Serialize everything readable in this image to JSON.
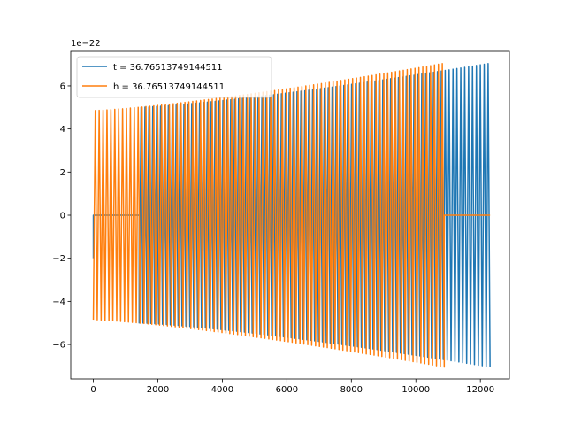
{
  "chart_data": {
    "type": "line",
    "title": "",
    "xlabel": "",
    "ylabel": "",
    "x_offset_label": "",
    "y_offset_label": "1e−22",
    "xlim": [
      -700,
      12900
    ],
    "ylim": [
      -7.6,
      7.6
    ],
    "grid": false,
    "legend_position": "top-left",
    "x_ticks": [
      0,
      2000,
      4000,
      6000,
      8000,
      10000,
      12000
    ],
    "x_tick_labels": [
      "0",
      "2000",
      "4000",
      "6000",
      "8000",
      "10000",
      "12000"
    ],
    "y_ticks": [
      -6,
      -4,
      -2,
      0,
      2,
      4,
      6
    ],
    "y_tick_labels": [
      "−6",
      "−4",
      "−2",
      "0",
      "2",
      "4",
      "6"
    ],
    "series": [
      {
        "name": "t = 36.76513749144511",
        "color": "#1f77b4",
        "flat_segments": [
          [
            0,
            1420
          ]
        ],
        "oscillation": {
          "x_start": 1420,
          "x_end": 12300,
          "amp_start": 5.0,
          "amp_end": 7.05,
          "cycles": 90,
          "start_value": -5.0
        },
        "first_point": -2.0
      },
      {
        "name": "h = 36.76513749144511",
        "color": "#ff7f0e",
        "flat_segments": [
          [
            10880,
            12300
          ]
        ],
        "oscillation": {
          "x_start": 0,
          "x_end": 10880,
          "amp_start": 4.85,
          "amp_end": 7.05,
          "cycles": 90,
          "start_value": -5.0
        }
      }
    ]
  }
}
